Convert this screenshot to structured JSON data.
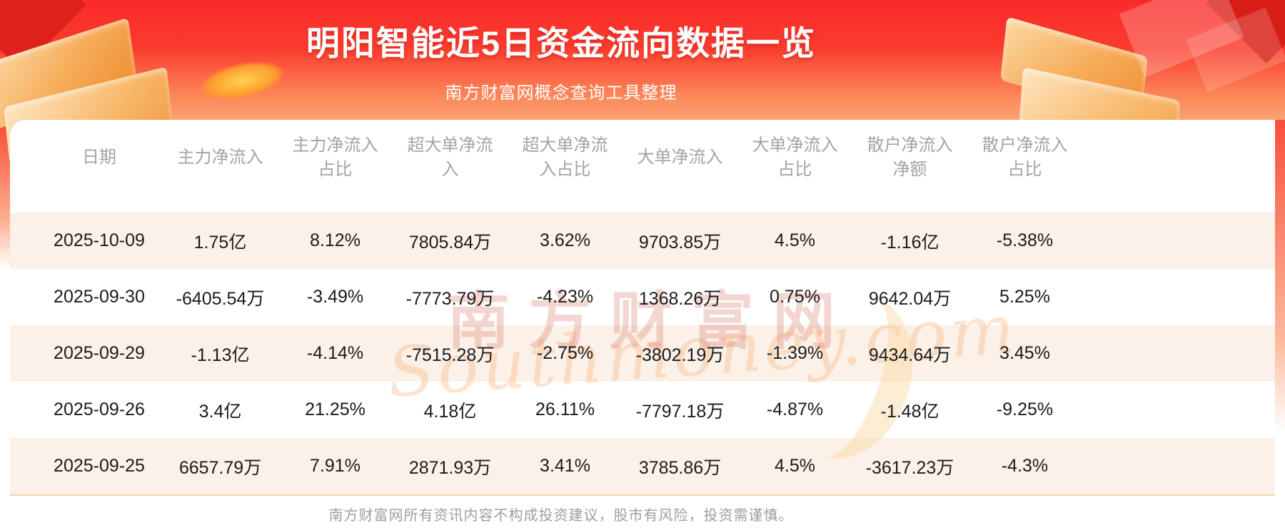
{
  "page": {
    "title": "明阳智能近5日资金流向数据一览",
    "subtitle": "南方财富网概念查询工具整理",
    "footer": "南方财富网所有资讯内容不构成投资建议，股市有风险，投资需谨慎。",
    "watermark_cn": "南方财富网",
    "watermark_en": "Southmoney.com"
  },
  "colors": {
    "hero_red": "#fb2a2a",
    "hero_orange": "#fba273",
    "row_alt_bg": "#fcf1e8",
    "header_text": "#a3a3a3",
    "cell_text": "#1b1b1b",
    "card_bottom_border": "#f6d2a2",
    "footer_text": "#9e9e9e"
  },
  "chart_data": {
    "type": "table",
    "title": "明阳智能近5日资金流向数据一览",
    "columns": [
      "日期",
      "主力净流入",
      "主力净流入占比",
      "超大单净流入",
      "超大单净流入占比",
      "大单净流入",
      "大单净流入占比",
      "散户净流入净额",
      "散户净流入占比"
    ],
    "rows": [
      [
        "2025-10-09",
        "1.75亿",
        "8.12%",
        "7805.84万",
        "3.62%",
        "9703.85万",
        "4.5%",
        "-1.16亿",
        "-5.38%"
      ],
      [
        "2025-09-30",
        "-6405.54万",
        "-3.49%",
        "-7773.79万",
        "-4.23%",
        "1368.26万",
        "0.75%",
        "9642.04万",
        "5.25%"
      ],
      [
        "2025-09-29",
        "-1.13亿",
        "-4.14%",
        "-7515.28万",
        "-2.75%",
        "-3802.19万",
        "-1.39%",
        "9434.64万",
        "3.45%"
      ],
      [
        "2025-09-26",
        "3.4亿",
        "21.25%",
        "4.18亿",
        "26.11%",
        "-7797.18万",
        "-4.87%",
        "-1.48亿",
        "-9.25%"
      ],
      [
        "2025-09-25",
        "6657.79万",
        "7.91%",
        "2871.93万",
        "3.41%",
        "3785.86万",
        "4.5%",
        "-3617.23万",
        "-4.3%"
      ]
    ]
  }
}
